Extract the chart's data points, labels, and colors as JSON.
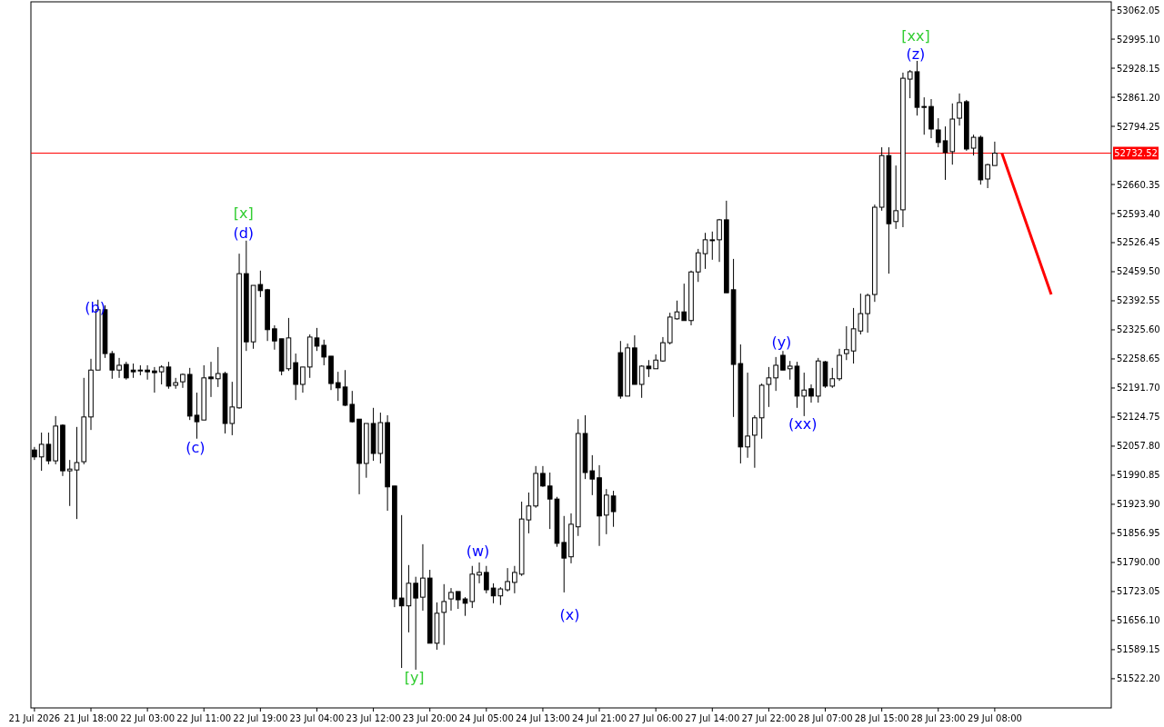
{
  "chart_data": {
    "type": "candlestick",
    "categories": [
      "21 Jul 2026",
      null,
      null,
      null,
      null,
      null,
      null,
      null,
      "21 Jul 18:00",
      null,
      null,
      null,
      null,
      null,
      null,
      null,
      "22 Jul 03:00",
      null,
      null,
      null,
      null,
      null,
      null,
      null,
      "22 Jul 11:00",
      null,
      null,
      null,
      null,
      null,
      null,
      null,
      "22 Jul 19:00",
      null,
      null,
      null,
      null,
      null,
      null,
      null,
      "23 Jul 04:00",
      null,
      null,
      null,
      null,
      null,
      null,
      null,
      "23 Jul 12:00",
      null,
      null,
      null,
      null,
      null,
      null,
      null,
      "23 Jul 20:00",
      null,
      null,
      null,
      null,
      null,
      null,
      null,
      "24 Jul 05:00",
      null,
      null,
      null,
      null,
      null,
      null,
      null,
      "24 Jul 13:00",
      null,
      null,
      null,
      null,
      null,
      null,
      null,
      "24 Jul 21:00",
      null,
      null,
      null,
      null,
      null,
      null,
      null,
      "27 Jul 06:00",
      null,
      null,
      null,
      null,
      null,
      null,
      null,
      "27 Jul 14:00",
      null,
      null,
      null,
      null,
      null,
      null,
      null,
      "27 Jul 22:00",
      null,
      null,
      null,
      null,
      null,
      null,
      null,
      "28 Jul 07:00",
      null,
      null,
      null,
      null,
      null,
      null,
      null,
      "28 Jul 15:00",
      null,
      null,
      null,
      null,
      null,
      null,
      null,
      "28 Jul 23:00",
      null,
      null,
      null,
      null,
      null,
      null,
      null,
      "29 Jul 08:00",
      null,
      null,
      null,
      null,
      null,
      null,
      null,
      null,
      null,
      null,
      null,
      null,
      null,
      null,
      null,
      null
    ],
    "ohlc": [
      [
        52049,
        52056,
        52026,
        52033
      ],
      [
        52033,
        52089,
        52001,
        52062
      ],
      [
        52062,
        52089,
        52016,
        52024
      ],
      [
        52024,
        52127,
        52016,
        52104
      ],
      [
        52106,
        52108,
        51989,
        52001
      ],
      [
        52001,
        52026,
        51920,
        52005
      ],
      [
        52003,
        52102,
        51890,
        52020
      ],
      [
        52022,
        52215,
        52016,
        52125
      ],
      [
        52125,
        52259,
        52095,
        52233
      ],
      [
        52233,
        52395,
        52233,
        52372
      ],
      [
        52372,
        52382,
        52261,
        52271
      ],
      [
        52271,
        52277,
        52213,
        52233
      ],
      [
        52233,
        52261,
        52215,
        52244
      ],
      [
        52246,
        52252,
        52211,
        52215
      ],
      [
        52233,
        52248,
        52215,
        52229
      ],
      [
        52233,
        52244,
        52221,
        52233
      ],
      [
        52233,
        52244,
        52211,
        52229
      ],
      [
        52231,
        52240,
        52181,
        52227
      ],
      [
        52229,
        52244,
        52200,
        52240
      ],
      [
        52240,
        52252,
        52190,
        52196
      ],
      [
        52198,
        52215,
        52190,
        52204
      ],
      [
        52206,
        52225,
        52192,
        52223
      ],
      [
        52223,
        52238,
        52118,
        52127
      ],
      [
        52129,
        52181,
        52075,
        52114
      ],
      [
        52118,
        52244,
        52118,
        52215
      ],
      [
        52217,
        52252,
        52171,
        52213
      ],
      [
        52213,
        52286,
        52194,
        52225
      ],
      [
        52225,
        52229,
        52087,
        52110
      ],
      [
        52110,
        52206,
        52083,
        52148
      ],
      [
        52146,
        52501,
        52144,
        52455
      ],
      [
        52455,
        52531,
        52277,
        52298
      ],
      [
        52298,
        52428,
        52282,
        52428
      ],
      [
        52430,
        52462,
        52401,
        52416
      ],
      [
        52418,
        52420,
        52300,
        52326
      ],
      [
        52328,
        52336,
        52280,
        52300
      ],
      [
        52305,
        52305,
        52221,
        52231
      ],
      [
        52236,
        52353,
        52231,
        52307
      ],
      [
        52250,
        52271,
        52164,
        52200
      ],
      [
        52200,
        52240,
        52181,
        52240
      ],
      [
        52240,
        52315,
        52215,
        52309
      ],
      [
        52307,
        52330,
        52277,
        52288
      ],
      [
        52290,
        52303,
        52244,
        52263
      ],
      [
        52265,
        52265,
        52187,
        52202
      ],
      [
        52204,
        52229,
        52162,
        52192
      ],
      [
        52194,
        52233,
        52150,
        52152
      ],
      [
        52154,
        52185,
        52112,
        52114
      ],
      [
        52120,
        52120,
        51947,
        52018
      ],
      [
        52018,
        52110,
        51985,
        52110
      ],
      [
        52110,
        52146,
        52024,
        52041
      ],
      [
        52041,
        52135,
        52018,
        52112
      ],
      [
        52112,
        52129,
        51909,
        51964
      ],
      [
        51966,
        51966,
        51687,
        51706
      ],
      [
        51708,
        51899,
        51547,
        51690
      ],
      [
        51690,
        51784,
        51629,
        51742
      ],
      [
        51742,
        51757,
        51543,
        51708
      ],
      [
        51710,
        51832,
        51679,
        51754
      ],
      [
        51754,
        51773,
        51604,
        51604
      ],
      [
        51604,
        51698,
        51589,
        51673
      ],
      [
        51675,
        51740,
        51600,
        51700
      ],
      [
        51706,
        51731,
        51679,
        51721
      ],
      [
        51723,
        51723,
        51683,
        51704
      ],
      [
        51706,
        51710,
        51667,
        51696
      ],
      [
        51700,
        51782,
        51685,
        51763
      ],
      [
        51761,
        51790,
        51742,
        51767
      ],
      [
        51767,
        51782,
        51719,
        51727
      ],
      [
        51731,
        51742,
        51696,
        51713
      ],
      [
        51713,
        51733,
        51692,
        51729
      ],
      [
        51727,
        51777,
        51723,
        51746
      ],
      [
        51744,
        51782,
        51719,
        51767
      ],
      [
        51763,
        51930,
        51759,
        51890
      ],
      [
        51888,
        51951,
        51857,
        51920
      ],
      [
        51920,
        52012,
        51916,
        51995
      ],
      [
        51995,
        52012,
        51964,
        51966
      ],
      [
        51966,
        51997,
        51867,
        51936
      ],
      [
        51936,
        51941,
        51826,
        51834
      ],
      [
        51836,
        51897,
        51721,
        51800
      ],
      [
        51803,
        51903,
        51788,
        51878
      ],
      [
        51872,
        52120,
        51851,
        52087
      ],
      [
        52087,
        52129,
        51982,
        51997
      ],
      [
        52001,
        52037,
        51945,
        51982
      ],
      [
        51985,
        52014,
        51828,
        51897
      ],
      [
        51899,
        51959,
        51855,
        51945
      ],
      [
        51943,
        51955,
        51872,
        51907
      ],
      [
        52273,
        52300,
        52167,
        52173
      ],
      [
        52173,
        52294,
        52173,
        52284
      ],
      [
        52284,
        52313,
        52200,
        52200
      ],
      [
        52200,
        52244,
        52169,
        52242
      ],
      [
        52242,
        52256,
        52217,
        52236
      ],
      [
        52236,
        52269,
        52236,
        52256
      ],
      [
        52254,
        52309,
        52252,
        52296
      ],
      [
        52296,
        52365,
        52292,
        52355
      ],
      [
        52351,
        52393,
        52349,
        52367
      ],
      [
        52367,
        52432,
        52347,
        52347
      ],
      [
        52347,
        52462,
        52336,
        52459
      ],
      [
        52459,
        52512,
        52436,
        52503
      ],
      [
        52501,
        52549,
        52466,
        52533
      ],
      [
        52531,
        52552,
        52487,
        52533
      ],
      [
        52533,
        52581,
        52482,
        52579
      ],
      [
        52579,
        52623,
        52411,
        52411
      ],
      [
        52418,
        52489,
        52125,
        52246
      ],
      [
        52248,
        52292,
        52018,
        52056
      ],
      [
        52056,
        52227,
        52031,
        52081
      ],
      [
        52083,
        52129,
        52008,
        52123
      ],
      [
        52123,
        52202,
        52075,
        52198
      ],
      [
        52200,
        52240,
        52148,
        52215
      ],
      [
        52215,
        52263,
        52185,
        52244
      ],
      [
        52267,
        52277,
        52233,
        52233
      ],
      [
        52236,
        52254,
        52211,
        52242
      ],
      [
        52242,
        52252,
        52146,
        52173
      ],
      [
        52173,
        52227,
        52127,
        52187
      ],
      [
        52190,
        52200,
        52158,
        52173
      ],
      [
        52173,
        52261,
        52158,
        52254
      ],
      [
        52252,
        52254,
        52192,
        52196
      ],
      [
        52196,
        52238,
        52192,
        52213
      ],
      [
        52213,
        52282,
        52208,
        52267
      ],
      [
        52271,
        52334,
        52256,
        52280
      ],
      [
        52277,
        52376,
        52248,
        52328
      ],
      [
        52323,
        52409,
        52315,
        52363
      ],
      [
        52363,
        52409,
        52319,
        52405
      ],
      [
        52407,
        52614,
        52390,
        52608
      ],
      [
        52608,
        52746,
        52600,
        52727
      ],
      [
        52727,
        52746,
        52455,
        52570
      ],
      [
        52575,
        52704,
        52558,
        52600
      ],
      [
        52602,
        52918,
        52562,
        52905
      ],
      [
        52903,
        52924,
        52859,
        52920
      ],
      [
        52920,
        52945,
        52819,
        52838
      ],
      [
        52840,
        52861,
        52775,
        52838
      ],
      [
        52840,
        52857,
        52767,
        52788
      ],
      [
        52786,
        52813,
        52746,
        52757
      ],
      [
        52761,
        52794,
        52671,
        52734
      ],
      [
        52736,
        52847,
        52706,
        52811
      ],
      [
        52813,
        52870,
        52796,
        52849
      ],
      [
        52851,
        52855,
        52738,
        52742
      ],
      [
        52744,
        52775,
        52727,
        52769
      ],
      [
        52769,
        52773,
        52660,
        52671
      ],
      [
        52673,
        52708,
        52652,
        52706
      ],
      [
        52704,
        52759,
        52704,
        52732.52
      ],
      null,
      null,
      null,
      null,
      null,
      null,
      null,
      null,
      null,
      null,
      null,
      null,
      null,
      null,
      null,
      null
    ],
    "series": [
      {
        "type": "line",
        "color": "#ff0000",
        "values": [
          null,
          null,
          null,
          null,
          null,
          null,
          null,
          null,
          null,
          null,
          null,
          null,
          null,
          null,
          null,
          null,
          null,
          null,
          null,
          null,
          null,
          null,
          null,
          null,
          null,
          null,
          null,
          null,
          null,
          null,
          null,
          null,
          null,
          null,
          null,
          null,
          null,
          null,
          null,
          null,
          null,
          null,
          null,
          null,
          null,
          null,
          null,
          null,
          null,
          null,
          null,
          null,
          null,
          null,
          null,
          null,
          null,
          null,
          null,
          null,
          null,
          null,
          null,
          null,
          null,
          null,
          null,
          null,
          null,
          null,
          null,
          null,
          null,
          null,
          null,
          null,
          null,
          null,
          null,
          null,
          null,
          null,
          null,
          null,
          null,
          null,
          null,
          null,
          null,
          null,
          null,
          null,
          null,
          null,
          null,
          null,
          null,
          null,
          null,
          null,
          null,
          null,
          null,
          null,
          null,
          null,
          null,
          null,
          null,
          null,
          null,
          null,
          null,
          null,
          null,
          null,
          null,
          null,
          null,
          null,
          null,
          null,
          null,
          null,
          null,
          null,
          null,
          null,
          null,
          null,
          null,
          null,
          null,
          null,
          null,
          null,
          null,
          52733,
          null,
          null,
          null,
          null,
          null,
          null,
          52407,
          null,
          null,
          null,
          null,
          null,
          null,
          null,
          null
        ]
      }
    ],
    "ylim": [
      51455,
      53081
    ],
    "yticks": [
      {
        "value": 53062.05,
        "label": "53062.05"
      },
      {
        "value": 52995.1,
        "label": "52995.10"
      },
      {
        "value": 52928.15,
        "label": "52928.15"
      },
      {
        "value": 52861.2,
        "label": "52861.20"
      },
      {
        "value": 52794.25,
        "label": "52794.25"
      },
      {
        "value": 52660.35,
        "label": "52660.35"
      },
      {
        "value": 52593.4,
        "label": "52593.40"
      },
      {
        "value": 52526.45,
        "label": "52526.45"
      },
      {
        "value": 52459.5,
        "label": "52459.50"
      },
      {
        "value": 52392.55,
        "label": "52392.55"
      },
      {
        "value": 52325.6,
        "label": "52325.60"
      },
      {
        "value": 52258.65,
        "label": "52258.65"
      },
      {
        "value": 52191.7,
        "label": "52191.70"
      },
      {
        "value": 52124.75,
        "label": "52124.75"
      },
      {
        "value": 52057.8,
        "label": "52057.80"
      },
      {
        "value": 51990.85,
        "label": "51990.85"
      },
      {
        "value": 51923.9,
        "label": "51923.90"
      },
      {
        "value": 51856.95,
        "label": "51856.95"
      },
      {
        "value": 51790,
        "label": "51790.00"
      },
      {
        "value": 51723.05,
        "label": "51723.05"
      },
      {
        "value": 51656.1,
        "label": "51656.10"
      },
      {
        "value": 51589.15,
        "label": "51589.15"
      },
      {
        "value": 51522.2,
        "label": "51522.20"
      }
    ],
    "ref_lines": [
      {
        "axis": "y",
        "value": 52732.52,
        "label": "52732.52",
        "color": "#ff0000"
      }
    ],
    "annotations": [
      "(b)",
      "(c)",
      "[x]",
      "(d)",
      "[y]",
      "(w)",
      "(x)",
      "(y)",
      "(xx)",
      "[xx]",
      "(z)"
    ]
  }
}
